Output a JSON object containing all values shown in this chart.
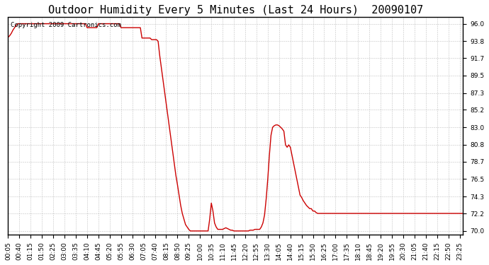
{
  "title": "Outdoor Humidity Every 5 Minutes (Last 24 Hours)  20090107",
  "copyright_text": "Copyright 2009 Cartronics.com",
  "line_color": "#cc0000",
  "background_color": "#ffffff",
  "grid_color": "#bbbbbb",
  "yticks": [
    70.0,
    72.2,
    74.3,
    76.5,
    78.7,
    80.8,
    83.0,
    85.2,
    87.3,
    89.5,
    91.7,
    93.8,
    96.0
  ],
  "ylim": [
    69.5,
    96.8
  ],
  "x_labels": [
    "00:05",
    "00:40",
    "01:15",
    "01:50",
    "02:25",
    "03:00",
    "03:35",
    "04:10",
    "04:45",
    "05:20",
    "05:55",
    "06:30",
    "07:05",
    "07:40",
    "08:15",
    "08:50",
    "09:25",
    "10:00",
    "10:35",
    "11:10",
    "11:45",
    "12:20",
    "12:55",
    "13:30",
    "14:05",
    "14:40",
    "15:15",
    "15:50",
    "16:25",
    "17:00",
    "17:35",
    "18:10",
    "18:45",
    "19:20",
    "19:55",
    "20:30",
    "21:05",
    "21:40",
    "22:15",
    "22:50",
    "23:25"
  ],
  "humidity_values": [
    94.3,
    94.5,
    94.8,
    95.2,
    95.5,
    95.8,
    96.0,
    96.0,
    96.0,
    96.0,
    96.0,
    96.0,
    96.0,
    96.0,
    96.0,
    96.0,
    96.0,
    96.0,
    96.0,
    96.0,
    96.0,
    96.0,
    96.0,
    96.0,
    96.0,
    96.0,
    96.0,
    96.0,
    96.0,
    96.0,
    96.0,
    96.0,
    96.0,
    96.0,
    96.0,
    96.0,
    96.0,
    96.0,
    96.0,
    96.0,
    96.0,
    96.0,
    96.0,
    96.0,
    96.0,
    96.0,
    96.0,
    96.0,
    96.0,
    95.5,
    95.5,
    95.5,
    95.5,
    95.5,
    95.5,
    95.5,
    96.0,
    96.0,
    96.0,
    96.0,
    96.0,
    96.0,
    96.0,
    96.0,
    96.0,
    96.0,
    96.0,
    96.0,
    96.0,
    96.0,
    95.5,
    95.5,
    95.5,
    95.5,
    95.5,
    95.5,
    95.5,
    95.5,
    95.5,
    95.5,
    95.5,
    95.5,
    95.5,
    94.2,
    94.2,
    94.2,
    94.2,
    94.2,
    94.2,
    94.0,
    94.0,
    94.0,
    94.0,
    93.8,
    92.0,
    90.5,
    89.0,
    87.5,
    86.0,
    84.5,
    83.0,
    81.5,
    80.0,
    78.5,
    77.0,
    75.8,
    74.5,
    73.2,
    72.2,
    71.5,
    70.8,
    70.5,
    70.2,
    70.0,
    70.0,
    70.0,
    70.0,
    70.0,
    70.0,
    70.0,
    70.0,
    70.0,
    70.0,
    70.0,
    70.0,
    71.5,
    73.5,
    72.5,
    71.0,
    70.5,
    70.2,
    70.2,
    70.2,
    70.2,
    70.3,
    70.4,
    70.3,
    70.2,
    70.1,
    70.1,
    70.0,
    70.0,
    70.0,
    70.0,
    70.0,
    70.0,
    70.0,
    70.0,
    70.0,
    70.0,
    70.1,
    70.1,
    70.1,
    70.2,
    70.2,
    70.2,
    70.2,
    70.5,
    71.0,
    72.0,
    74.0,
    76.5,
    79.5,
    82.0,
    83.0,
    83.2,
    83.3,
    83.3,
    83.2,
    83.0,
    82.8,
    82.5,
    80.8,
    80.5,
    80.8,
    80.5,
    79.5,
    78.5,
    77.5,
    76.5,
    75.5,
    74.5,
    74.2,
    73.8,
    73.5,
    73.2,
    73.0,
    72.8,
    72.8,
    72.5,
    72.5,
    72.3,
    72.2,
    72.2,
    72.2,
    72.2,
    72.2,
    72.2,
    72.2,
    72.2,
    72.2,
    72.2,
    72.2,
    72.2,
    72.2,
    72.2,
    72.2,
    72.2,
    72.2,
    72.2,
    72.2,
    72.2,
    72.2,
    72.2,
    72.2,
    72.2,
    72.2,
    72.2,
    72.2,
    72.2,
    72.2,
    72.2,
    72.2,
    72.2,
    72.2,
    72.2,
    72.2,
    72.2,
    72.2,
    72.2,
    72.2,
    72.2,
    72.2,
    72.2,
    72.2,
    72.2,
    72.2,
    72.2,
    72.2,
    72.2,
    72.2,
    72.2,
    72.2,
    72.2,
    72.2,
    72.2,
    72.2,
    72.2,
    72.2,
    72.2,
    72.2,
    72.2,
    72.2,
    72.2,
    72.2,
    72.2,
    72.2,
    72.2,
    72.2,
    72.2,
    72.2,
    72.2,
    72.2,
    72.2,
    72.2,
    72.2,
    72.2,
    72.2,
    72.2,
    72.2,
    72.2,
    72.2,
    72.2,
    72.2,
    72.2,
    72.2,
    72.2,
    72.2,
    72.2,
    72.2,
    72.2,
    72.2,
    72.2
  ],
  "title_fontsize": 11,
  "tick_fontsize": 6.5,
  "copyright_fontsize": 6.5,
  "linewidth": 1.0
}
